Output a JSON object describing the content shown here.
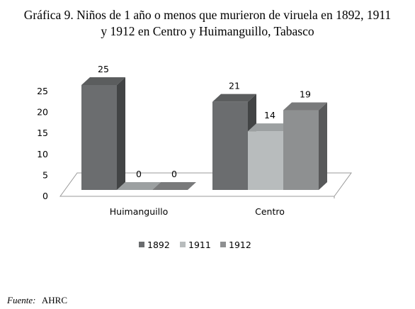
{
  "chart_data": {
    "type": "bar",
    "title_lines": [
      "Gráfica 9. Niños de 1 año o menos que murieron de viruela en 1892, 1911",
      "y 1912 en Centro y Huimanguillo, Tabasco"
    ],
    "categories": [
      "Huimanguillo",
      "Centro"
    ],
    "series": [
      {
        "name": "1892",
        "values": [
          25,
          21
        ],
        "color": "#6b6d6f"
      },
      {
        "name": "1911",
        "values": [
          0,
          14
        ],
        "color": "#b8bcbd"
      },
      {
        "name": "1912",
        "values": [
          0,
          19
        ],
        "color": "#8e9091"
      }
    ],
    "yticks": [
      0,
      5,
      10,
      15,
      20,
      25
    ],
    "ylim": [
      0,
      25
    ],
    "legend_position": "bottom",
    "grid": false,
    "three_d": true
  },
  "source": {
    "label": "Fuente:",
    "value": "AHRC"
  }
}
